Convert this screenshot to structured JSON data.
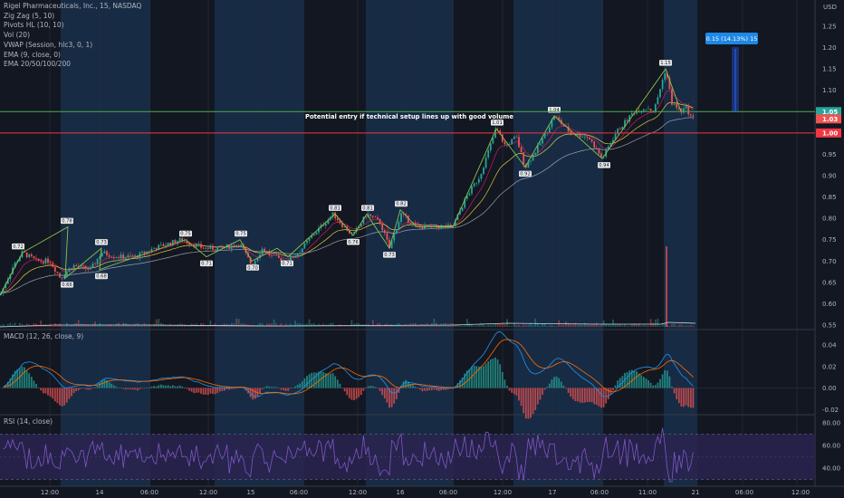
{
  "legend": {
    "title": "Rigel Pharmaceuticals, Inc., 15, NASDAQ",
    "indicators": [
      "Zig Zag (5, 10)",
      "Pivots HL (10, 10)",
      "Vol (20)",
      "VWAP (Session, hlc3, 0, 1)",
      "EMA (9, close, 0)",
      "EMA 20/50/100/200"
    ]
  },
  "macd_title": "MACD (12, 26, close, 9)",
  "rsi_title": "RSI (14, close)",
  "annotation": "Potential entry if technical setup lines up with good volume",
  "measure_label": "0.15 (14.13%) 15",
  "currency": "USD",
  "colors": {
    "background": "#131722",
    "session_band": "#1a3350",
    "up": "#26a69a",
    "down": "#ef5350",
    "zigzag": "#8bc34a",
    "entry_line": "#4caf50",
    "stop_line": "#f23645",
    "macd_line": "#2196f3",
    "signal_line": "#ff6d00",
    "rsi_line": "#7e57c2",
    "rsi_band": "#2a2350"
  },
  "chart_data": [
    {
      "type": "candlestick",
      "pane": "price",
      "y_ticks": [
        "1.25",
        "1.20",
        "1.15",
        "1.10",
        "1.05",
        "1.00",
        "0.95",
        "0.90",
        "0.85",
        "0.80",
        "0.75",
        "0.70",
        "0.65",
        "0.60",
        "0.55"
      ],
      "ylim": [
        0.535,
        1.265
      ],
      "x_ticks": [
        "12:00",
        "14",
        "06:00",
        "12:00",
        "15",
        "06:00",
        "12:00",
        "16",
        "06:00",
        "12:00",
        "17",
        "06:00",
        "11:00",
        "21",
        "06:00",
        "12:00"
      ],
      "price_labels": [
        {
          "label": "1.05",
          "value": 1.05,
          "color": "#26a69a"
        },
        {
          "label": "1.03",
          "value": 1.033,
          "color": "#ef5350"
        },
        {
          "label": "1.00",
          "value": 1.0,
          "color": "#f23645"
        }
      ],
      "horizontal_lines": [
        {
          "name": "entry",
          "value": 1.05
        },
        {
          "name": "stop",
          "value": 1.0
        }
      ],
      "pivot_labels": [
        {
          "label": "0.72",
          "value": 0.72
        },
        {
          "label": "0.78",
          "value": 0.78
        },
        {
          "label": "0.66",
          "value": 0.66
        },
        {
          "label": "0.73",
          "value": 0.73
        },
        {
          "label": "0.68",
          "value": 0.68
        },
        {
          "label": "0.75",
          "value": 0.75
        },
        {
          "label": "0.71",
          "value": 0.71
        },
        {
          "label": "0.75",
          "value": 0.75
        },
        {
          "label": "0.70",
          "value": 0.7
        },
        {
          "label": "0.71",
          "value": 0.71
        },
        {
          "label": "0.81",
          "value": 0.81
        },
        {
          "label": "0.76",
          "value": 0.76
        },
        {
          "label": "0.81",
          "value": 0.81
        },
        {
          "label": "0.73",
          "value": 0.73
        },
        {
          "label": "0.82",
          "value": 0.82
        },
        {
          "label": "1.01",
          "value": 1.01
        },
        {
          "label": "0.92",
          "value": 0.92
        },
        {
          "label": "1.04",
          "value": 1.04
        },
        {
          "label": "0.94",
          "value": 0.94
        },
        {
          "label": "1.15",
          "value": 1.15
        }
      ]
    },
    {
      "type": "histogram",
      "pane": "macd",
      "y_ticks": [
        "0.04",
        "0.02",
        "0.00",
        "-0.02"
      ],
      "ylim": [
        -0.034,
        0.054
      ]
    },
    {
      "type": "line",
      "pane": "rsi",
      "y_ticks": [
        "80.00",
        "60.00",
        "40.00"
      ],
      "ylim": [
        25,
        85
      ]
    }
  ]
}
